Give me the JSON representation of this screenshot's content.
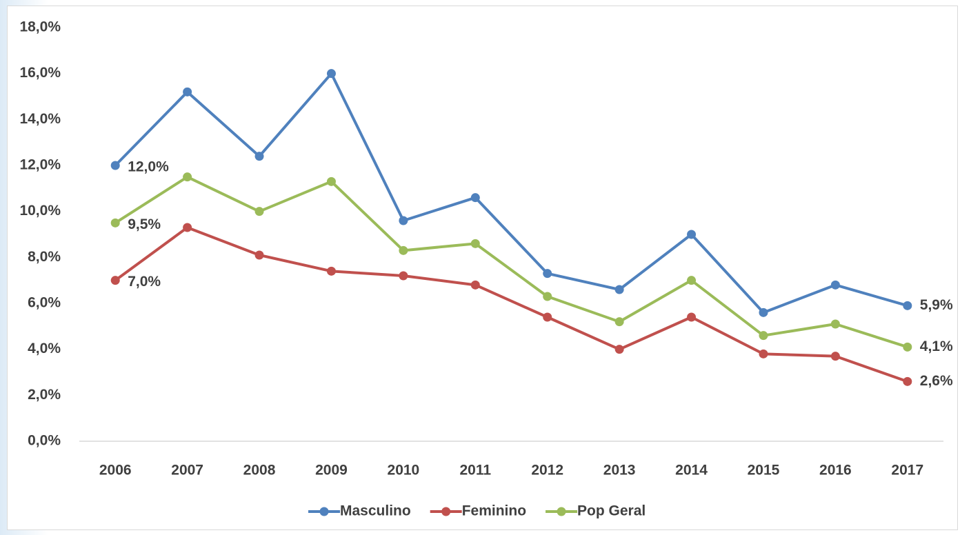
{
  "chart_data": {
    "type": "line",
    "categories": [
      "2006",
      "2007",
      "2008",
      "2009",
      "2010",
      "2011",
      "2012",
      "2013",
      "2014",
      "2015",
      "2016",
      "2017"
    ],
    "series": [
      {
        "name": "Masculino",
        "color": "#4f81bd",
        "values": [
          12.0,
          15.2,
          12.4,
          16.0,
          9.6,
          10.6,
          7.3,
          6.6,
          9.0,
          5.6,
          6.8,
          5.9
        ],
        "value_labels": [
          "12,0%",
          null,
          null,
          null,
          null,
          null,
          null,
          null,
          null,
          null,
          null,
          "5,9%"
        ]
      },
      {
        "name": "Feminino",
        "color": "#c0504d",
        "values": [
          7.0,
          9.3,
          8.1,
          7.4,
          7.2,
          6.8,
          5.4,
          4.0,
          5.4,
          3.8,
          3.7,
          2.6
        ],
        "value_labels": [
          "7,0%",
          null,
          null,
          null,
          null,
          null,
          null,
          null,
          null,
          null,
          null,
          "2,6%"
        ]
      },
      {
        "name": "Pop Geral",
        "color": "#9bbb59",
        "values": [
          9.5,
          11.5,
          10.0,
          11.3,
          8.3,
          8.6,
          6.3,
          5.2,
          7.0,
          4.6,
          5.1,
          4.1
        ],
        "value_labels": [
          "9,5%",
          null,
          null,
          null,
          null,
          null,
          null,
          null,
          null,
          null,
          null,
          "4,1%"
        ]
      }
    ],
    "ylim": [
      0,
      18
    ],
    "yticks": [
      {
        "value": 0,
        "label": "0,0%"
      },
      {
        "value": 2,
        "label": "2,0%"
      },
      {
        "value": 4,
        "label": "4,0%"
      },
      {
        "value": 6,
        "label": "6,0%"
      },
      {
        "value": 8,
        "label": "8,0%"
      },
      {
        "value": 10,
        "label": "10,0%"
      },
      {
        "value": 12,
        "label": "12,0%"
      },
      {
        "value": 14,
        "label": "14,0%"
      },
      {
        "value": 16,
        "label": "16,0%"
      },
      {
        "value": 18,
        "label": "18,0%"
      }
    ],
    "grid": false,
    "legend": "bottom"
  }
}
